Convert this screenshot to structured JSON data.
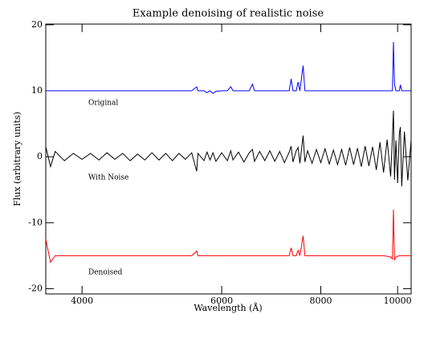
{
  "chart_data": {
    "type": "line",
    "title": "Example denoising of realistic noise",
    "xlabel": "Wavelength (Å)",
    "ylabel": "Flux (arbitrary units)",
    "annotations": [
      "Original",
      "With Noise",
      "Denoised"
    ],
    "xscale": "log",
    "xlim": [
      3600,
      10400
    ],
    "xticks": [
      4000,
      6000,
      8000,
      10000
    ],
    "ylim": [
      -20.8,
      20.1
    ],
    "yticks": [
      -20,
      -10,
      0,
      10,
      20
    ],
    "x": [
      3600,
      3650,
      3700,
      3800,
      3900,
      4000,
      4100,
      4200,
      4300,
      4400,
      4500,
      4600,
      4700,
      4800,
      4900,
      5000,
      5100,
      5200,
      5300,
      5400,
      5500,
      5580,
      5600,
      5700,
      5750,
      5800,
      5850,
      5900,
      6000,
      6100,
      6160,
      6200,
      6300,
      6400,
      6500,
      6560,
      6600,
      6700,
      6800,
      6900,
      7000,
      7100,
      7200,
      7300,
      7340,
      7380,
      7450,
      7490,
      7530,
      7600,
      7640,
      7700,
      7800,
      7900,
      8000,
      8100,
      8200,
      8300,
      8400,
      8500,
      8600,
      8700,
      8800,
      8900,
      9000,
      9100,
      9200,
      9300,
      9400,
      9500,
      9600,
      9700,
      9800,
      9850,
      9880,
      9910,
      9950,
      10000,
      10050,
      10080,
      10120,
      10200,
      10300,
      10400
    ],
    "series": [
      {
        "name": "Original",
        "color": "#0000ff",
        "values": [
          10,
          10,
          10,
          10,
          10,
          10,
          10,
          10,
          10,
          10,
          10,
          10,
          10,
          10,
          10,
          10,
          10,
          10,
          10,
          10,
          10,
          10.6,
          10,
          10,
          9.7,
          10,
          9.6,
          9.9,
          10,
          10,
          10.6,
          10,
          10,
          10,
          10,
          11,
          10,
          10,
          10,
          10,
          10,
          10,
          10,
          10,
          11.8,
          10,
          10,
          11.3,
          10,
          13.8,
          10,
          10,
          10,
          10,
          10,
          10,
          10,
          10,
          10,
          10,
          10,
          10,
          10,
          10,
          10,
          10,
          10,
          10,
          10,
          10,
          10,
          10,
          10,
          10,
          17.4,
          11,
          10,
          10,
          10,
          10.9,
          10,
          10,
          10,
          10
        ]
      },
      {
        "name": "With Noise",
        "color": "#000000",
        "values": [
          1.5,
          -1.5,
          0.8,
          -0.6,
          0.5,
          -0.4,
          0.5,
          -0.5,
          0.6,
          -0.4,
          0.5,
          -0.6,
          0.4,
          -0.5,
          0.6,
          -0.5,
          0.5,
          -0.6,
          0.5,
          -0.4,
          0.6,
          -2.2,
          0.5,
          -0.6,
          0.7,
          -0.5,
          0.6,
          -0.7,
          0.6,
          -0.6,
          0.9,
          -0.5,
          0.7,
          -0.8,
          0.6,
          1.1,
          -0.7,
          0.8,
          -0.6,
          0.9,
          -0.7,
          0.8,
          -0.9,
          0.7,
          1.6,
          -0.8,
          0.9,
          1.4,
          -1,
          3.2,
          -0.8,
          0.9,
          -1,
          1.1,
          -0.9,
          1.2,
          -1.1,
          1,
          -1.2,
          1.1,
          -1.3,
          1.4,
          -1.2,
          1.3,
          -1.5,
          1.6,
          -1.4,
          1.5,
          -2,
          2.2,
          -2.4,
          2.6,
          -3,
          3,
          7,
          -3.5,
          2.5,
          -4,
          3.5,
          4.5,
          -4.5,
          3.8,
          -3.6,
          2.5
        ]
      },
      {
        "name": "Denoised",
        "color": "#ff0000",
        "values": [
          -12.5,
          -16,
          -15,
          -15,
          -15,
          -15,
          -15,
          -15,
          -15,
          -15,
          -15,
          -15,
          -15,
          -15,
          -15,
          -15,
          -15,
          -15,
          -15,
          -15,
          -15,
          -14.3,
          -15,
          -15,
          -15,
          -15,
          -15,
          -15,
          -15,
          -15,
          -15,
          -15,
          -15,
          -15,
          -15,
          -15,
          -15,
          -15,
          -15,
          -15,
          -15,
          -15,
          -15,
          -15,
          -13.8,
          -15,
          -15,
          -14.2,
          -15,
          -12,
          -15,
          -15,
          -15,
          -15,
          -15,
          -15,
          -15,
          -15,
          -15,
          -15,
          -15,
          -15,
          -15,
          -15,
          -15,
          -15,
          -15,
          -15,
          -15,
          -15,
          -15,
          -15.1,
          -15.2,
          -15.5,
          -8,
          -15.6,
          -15.2,
          -15.1,
          -15,
          -15,
          -15,
          -15,
          -15,
          -15
        ]
      }
    ]
  }
}
